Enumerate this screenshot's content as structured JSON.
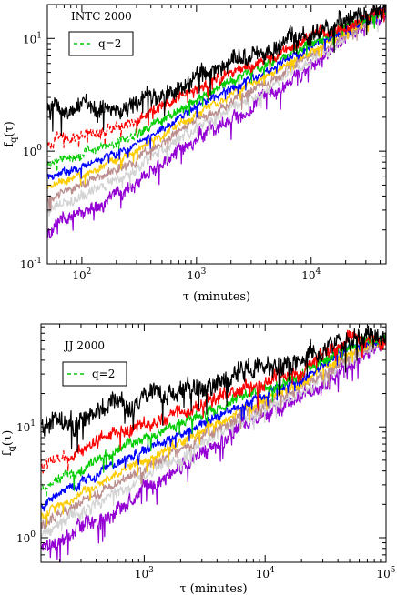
{
  "figure": {
    "chart_data": [
      {
        "type": "line",
        "title": "INTC 2000",
        "xlabel": "τ (minutes)",
        "ylabel": "f_q(τ)",
        "xscale": "log",
        "yscale": "log",
        "xlim": [
          50,
          45000
        ],
        "ylim": [
          0.1,
          20
        ],
        "x_ticks": [
          {
            "v": 100,
            "b": "10",
            "e": "2"
          },
          {
            "v": 1000,
            "b": "10",
            "e": "3"
          },
          {
            "v": 10000,
            "b": "10",
            "e": "4"
          }
        ],
        "y_ticks": [
          {
            "v": 0.1,
            "b": "10",
            "e": "-1"
          },
          {
            "v": 1,
            "b": "10",
            "e": "0"
          },
          {
            "v": 10,
            "b": "10",
            "e": "1"
          }
        ],
        "legend": {
          "position": "top-left",
          "entries": [
            {
              "label": "q=2",
              "color": "#00cc00",
              "dash": "dashed"
            }
          ]
        },
        "series": [
          {
            "color": "#000000",
            "start": 2.4,
            "noise": 0.12,
            "knots": [
              [
                50,
                2.4
              ],
              [
                250,
                2.4
              ],
              [
                800,
                4.0
              ],
              [
                3000,
                7.0
              ],
              [
                10000,
                11.0
              ],
              [
                20000,
                14.0
              ],
              [
                45000,
                18.0
              ]
            ]
          },
          {
            "color": "#ff0000",
            "dashed_until": 300,
            "noise": 0.07,
            "knots": [
              [
                50,
                1.2
              ],
              [
                250,
                1.7
              ],
              [
                800,
                3.2
              ],
              [
                3000,
                5.8
              ],
              [
                10000,
                10.0
              ],
              [
                20000,
                13.0
              ],
              [
                45000,
                18.0
              ]
            ]
          },
          {
            "color": "#00cc00",
            "dashed_until": 300,
            "noise": 0.06,
            "knots": [
              [
                50,
                0.75
              ],
              [
                250,
                1.25
              ],
              [
                800,
                2.6
              ],
              [
                3000,
                5.0
              ],
              [
                10000,
                9.0
              ],
              [
                20000,
                12.5
              ],
              [
                45000,
                18.0
              ]
            ]
          },
          {
            "color": "#0000ff",
            "noise": 0.05,
            "knots": [
              [
                50,
                0.58
              ],
              [
                250,
                1.05
              ],
              [
                800,
                2.2
              ],
              [
                3000,
                4.4
              ],
              [
                10000,
                8.3
              ],
              [
                20000,
                12.0
              ],
              [
                45000,
                18.0
              ]
            ]
          },
          {
            "color": "#ffcc00",
            "noise": 0.05,
            "knots": [
              [
                50,
                0.47
              ],
              [
                250,
                0.9
              ],
              [
                800,
                1.9
              ],
              [
                3000,
                3.9
              ],
              [
                10000,
                7.7
              ],
              [
                20000,
                11.5
              ],
              [
                45000,
                18.0
              ]
            ]
          },
          {
            "color": "#bc8f8f",
            "noise": 0.06,
            "knots": [
              [
                50,
                0.38
              ],
              [
                250,
                0.75
              ],
              [
                800,
                1.65
              ],
              [
                3000,
                3.4
              ],
              [
                10000,
                7.0
              ],
              [
                20000,
                11.0
              ],
              [
                45000,
                17.5
              ]
            ]
          },
          {
            "color": "#d3d3d3",
            "noise": 0.07,
            "knots": [
              [
                50,
                0.3
              ],
              [
                250,
                0.62
              ],
              [
                800,
                1.4
              ],
              [
                3000,
                3.0
              ],
              [
                10000,
                6.4
              ],
              [
                20000,
                10.5
              ],
              [
                45000,
                17.5
              ]
            ]
          },
          {
            "color": "#9400d3",
            "noise": 0.09,
            "knots": [
              [
                50,
                0.2
              ],
              [
                250,
                0.45
              ],
              [
                800,
                1.1
              ],
              [
                3000,
                2.5
              ],
              [
                10000,
                5.6
              ],
              [
                20000,
                10.0
              ],
              [
                45000,
                17.5
              ]
            ]
          }
        ]
      },
      {
        "type": "line",
        "title": "JJ 2000",
        "xlabel": "τ (minutes)",
        "ylabel": "f_q(τ)",
        "xscale": "log",
        "yscale": "log",
        "xlim": [
          140,
          100000
        ],
        "ylim": [
          0.6,
          85
        ],
        "x_ticks": [
          {
            "v": 1000,
            "b": "10",
            "e": "3"
          },
          {
            "v": 10000,
            "b": "10",
            "e": "4"
          },
          {
            "v": 100000,
            "b": "10",
            "e": "5"
          }
        ],
        "y_ticks": [
          {
            "v": 1,
            "b": "10",
            "e": "0"
          },
          {
            "v": 10,
            "b": "10",
            "e": "1"
          }
        ],
        "legend": {
          "position": "top-left",
          "entries": [
            {
              "label": "q=2",
              "color": "#00cc00",
              "dash": "dashed"
            }
          ]
        },
        "series": [
          {
            "color": "#000000",
            "noise": 0.14,
            "knots": [
              [
                140,
                10.0
              ],
              [
                500,
                14.0
              ],
              [
                2000,
                20.0
              ],
              [
                5000,
                28.0
              ],
              [
                20000,
                40.0
              ],
              [
                55000,
                72.0
              ],
              [
                100000,
                62.0
              ]
            ]
          },
          {
            "color": "#ff0000",
            "dashed_until": 250,
            "noise": 0.09,
            "knots": [
              [
                140,
                4.6
              ],
              [
                500,
                8.0
              ],
              [
                2000,
                13.5
              ],
              [
                5000,
                20.0
              ],
              [
                20000,
                34.0
              ],
              [
                55000,
                66.0
              ],
              [
                100000,
                62.0
              ]
            ]
          },
          {
            "color": "#00cc00",
            "dashed_until": 260,
            "noise": 0.07,
            "knots": [
              [
                140,
                2.8
              ],
              [
                500,
                5.6
              ],
              [
                2000,
                10.5
              ],
              [
                5000,
                16.5
              ],
              [
                20000,
                30.0
              ],
              [
                55000,
                60.0
              ],
              [
                100000,
                62.0
              ]
            ]
          },
          {
            "color": "#0000ff",
            "noise": 0.06,
            "knots": [
              [
                140,
                2.0
              ],
              [
                500,
                4.2
              ],
              [
                2000,
                8.5
              ],
              [
                5000,
                14.0
              ],
              [
                20000,
                27.0
              ],
              [
                55000,
                55.0
              ],
              [
                100000,
                62.0
              ]
            ]
          },
          {
            "color": "#ffcc00",
            "noise": 0.06,
            "knots": [
              [
                140,
                1.6
              ],
              [
                500,
                3.4
              ],
              [
                2000,
                7.2
              ],
              [
                5000,
                12.5
              ],
              [
                20000,
                25.0
              ],
              [
                55000,
                50.0
              ],
              [
                100000,
                62.0
              ]
            ]
          },
          {
            "color": "#bc8f8f",
            "noise": 0.07,
            "knots": [
              [
                140,
                1.3
              ],
              [
                500,
                2.8
              ],
              [
                2000,
                6.2
              ],
              [
                5000,
                11.0
              ],
              [
                20000,
                23.0
              ],
              [
                55000,
                46.0
              ],
              [
                100000,
                62.0
              ]
            ]
          },
          {
            "color": "#d3d3d3",
            "noise": 0.08,
            "knots": [
              [
                140,
                1.05
              ],
              [
                500,
                2.3
              ],
              [
                2000,
                5.4
              ],
              [
                5000,
                10.0
              ],
              [
                20000,
                21.0
              ],
              [
                55000,
                42.0
              ],
              [
                100000,
                62.0
              ]
            ]
          },
          {
            "color": "#9400d3",
            "noise": 0.1,
            "knots": [
              [
                140,
                0.8
              ],
              [
                500,
                1.6
              ],
              [
                2000,
                4.2
              ],
              [
                5000,
                8.5
              ],
              [
                20000,
                19.0
              ],
              [
                55000,
                38.0
              ],
              [
                100000,
                62.0
              ]
            ]
          }
        ]
      }
    ]
  }
}
